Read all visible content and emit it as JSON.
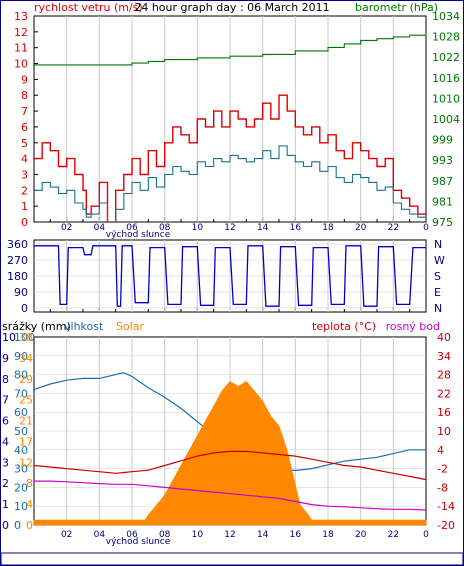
{
  "header": {
    "title": "24 hour graph day : 06 March 2011",
    "wind_label": "rychlost vetru (m/s)",
    "baro_label": "barometr (hPa)"
  },
  "legend_bottom": {
    "rain": "srážky (mm)",
    "humidity": "vlhkost",
    "solar": "Solar",
    "temp": "teplota (°C)",
    "dew": "rosný bod"
  },
  "sunrise_label": "východ slunce",
  "time_ticks": [
    "02",
    "04",
    "06",
    "08",
    "10",
    "12",
    "14",
    "16",
    "18",
    "20",
    "22"
  ],
  "colors": {
    "frame": "#000080",
    "wind_max": "#dd0000",
    "wind_avg": "#1a7090",
    "baro": "#007700",
    "direction": "#0000cc",
    "humidity": "#1a6eb0",
    "solar": "#ff8800",
    "temp": "#cc0000",
    "dew": "#cc00cc",
    "grid": "#cccccc"
  },
  "chart_data": [
    {
      "type": "line",
      "title": "24 hour graph day : 06 March 2011",
      "x_unit": "hour",
      "xlim": [
        0,
        24
      ],
      "left_axis": {
        "label": "rychlost vetru (m/s)",
        "ticks": [
          "0",
          "1",
          "2",
          "3",
          "4",
          "5",
          "6",
          "7",
          "8",
          "9",
          "10",
          "11",
          "12",
          "13"
        ],
        "ylim": [
          0,
          13
        ]
      },
      "right_axis": {
        "label": "barometr (hPa)",
        "ticks": [
          "975",
          "981",
          "987",
          "993",
          "999",
          "1004",
          "1010",
          "1016",
          "1022",
          "1028",
          "1034"
        ],
        "ylim": [
          975,
          1034
        ]
      },
      "series": [
        {
          "key": "wind_max",
          "axis": "left",
          "x": [
            0,
            0.5,
            1,
            1.5,
            2,
            2.5,
            3,
            3.2,
            3.5,
            4,
            4.5,
            5,
            5.5,
            6,
            6.5,
            7,
            7.5,
            8,
            8.5,
            9,
            9.5,
            10,
            10.5,
            11,
            11.5,
            12,
            12.5,
            13,
            13.5,
            14,
            14.5,
            15,
            15.5,
            16,
            16.5,
            17,
            17.5,
            18,
            18.5,
            19,
            19.5,
            20,
            20.5,
            21,
            21.5,
            22,
            22.5,
            23,
            23.5
          ],
          "y": [
            4,
            5,
            4.5,
            3.5,
            4,
            3,
            2,
            0.5,
            1,
            2.5,
            0,
            2,
            3,
            4,
            3,
            4.5,
            3.5,
            5,
            6,
            5.5,
            5,
            6.5,
            6,
            7,
            6,
            7,
            6.5,
            6,
            6.5,
            7.5,
            6.5,
            8,
            7,
            6,
            5.5,
            6,
            5,
            5.5,
            4.5,
            4,
            5,
            4.5,
            4,
            3.5,
            4,
            2,
            1.5,
            1,
            0.5
          ]
        },
        {
          "key": "wind_avg",
          "axis": "left",
          "x": [
            0,
            0.5,
            1,
            1.5,
            2,
            2.5,
            3,
            3.2,
            3.5,
            4,
            4.5,
            5,
            5.5,
            6,
            6.5,
            7,
            7.5,
            8,
            8.5,
            9,
            9.5,
            10,
            10.5,
            11,
            11.5,
            12,
            12.5,
            13,
            13.5,
            14,
            14.5,
            15,
            15.5,
            16,
            16.5,
            17,
            17.5,
            18,
            18.5,
            19,
            19.5,
            20,
            20.5,
            21,
            21.5,
            22,
            22.5,
            23,
            23.5
          ],
          "y": [
            2,
            2.5,
            2.2,
            1.8,
            2,
            1.2,
            0.8,
            0.3,
            0.5,
            1.2,
            0,
            0.8,
            1.8,
            2.5,
            2,
            2.8,
            2.2,
            3,
            3.5,
            3.2,
            3,
            3.8,
            3.5,
            4,
            3.8,
            4.2,
            4,
            3.8,
            4,
            4.5,
            4,
            4.8,
            4.2,
            3.8,
            3.5,
            3.8,
            3.2,
            3.5,
            2.8,
            2.5,
            3,
            2.8,
            2.5,
            2,
            2.2,
            1.2,
            0.8,
            0.5,
            0.3
          ]
        },
        {
          "key": "baro",
          "axis": "right",
          "x": [
            0,
            2,
            4,
            6,
            7,
            8,
            10,
            12,
            14,
            16,
            18,
            19,
            20,
            21,
            22,
            23,
            24
          ],
          "y": [
            1020,
            1020,
            1020,
            1020.5,
            1021,
            1021.5,
            1022,
            1022.5,
            1023,
            1024,
            1025,
            1026,
            1027,
            1027.5,
            1028,
            1028.5,
            1029
          ]
        }
      ]
    },
    {
      "type": "line",
      "title": "",
      "x_unit": "hour",
      "xlim": [
        0,
        24
      ],
      "left_axis": {
        "label": "",
        "ticks": [
          "0",
          "90",
          "180",
          "270",
          "360"
        ],
        "ylim": [
          0,
          360
        ]
      },
      "right_axis": {
        "label": "",
        "ticks": [
          "N",
          "E",
          "S",
          "W",
          "N"
        ],
        "ylim": [
          0,
          360
        ]
      },
      "series": [
        {
          "key": "direction",
          "axis": "left",
          "x": [
            0,
            1.5,
            1.6,
            2,
            2.1,
            3,
            3.1,
            3.5,
            3.6,
            5,
            5.1,
            5.3,
            5.4,
            6,
            6.2,
            7,
            7.1,
            8,
            8.2,
            9,
            9.1,
            10,
            10.2,
            11,
            11.1,
            12,
            12.2,
            13,
            13.1,
            14,
            14.2,
            15,
            15.1,
            16,
            16.2,
            17,
            17.1,
            18,
            18.2,
            19,
            19.1,
            20,
            20.2,
            21,
            21.1,
            22,
            22.2,
            23,
            23.2,
            24
          ],
          "y": [
            350,
            350,
            20,
            20,
            340,
            340,
            300,
            300,
            350,
            350,
            10,
            10,
            350,
            350,
            30,
            30,
            340,
            340,
            20,
            20,
            345,
            345,
            15,
            15,
            340,
            340,
            20,
            20,
            350,
            350,
            10,
            10,
            345,
            345,
            15,
            15,
            340,
            340,
            20,
            20,
            350,
            350,
            10,
            10,
            345,
            345,
            20,
            20,
            340,
            340
          ]
        }
      ]
    },
    {
      "type": "line",
      "title": "",
      "x_unit": "hour",
      "xlim": [
        0,
        24
      ],
      "left_axis_rain": {
        "label": "srážky (mm)",
        "ticks": [
          "0",
          "1",
          "2",
          "3",
          "4",
          "6",
          "7",
          "8",
          "9",
          "10"
        ],
        "ylim": [
          0,
          10
        ]
      },
      "left_axis_humidity": {
        "label": "vlhkost",
        "ticks": [
          "0",
          "10",
          "20",
          "30",
          "40",
          "50",
          "60",
          "70",
          "80",
          "90",
          "100"
        ],
        "ylim": [
          0,
          100
        ]
      },
      "left_axis_solar": {
        "label": "Solar",
        "ticks": [
          "0",
          "4",
          "8",
          "12",
          "17",
          "21",
          "25",
          "29",
          "34",
          "38"
        ],
        "ylim": [
          0,
          38
        ]
      },
      "right_axis": {
        "label": "teplota (°C)",
        "ticks": [
          "-20",
          "-14",
          "-8",
          "-2",
          "4",
          "10",
          "16",
          "22",
          "28",
          "34",
          "40"
        ],
        "ylim": [
          -20,
          40
        ]
      },
      "series": [
        {
          "key": "humidity",
          "axis": "humidity",
          "x": [
            0,
            1,
            2,
            3,
            4,
            5,
            5.5,
            6,
            7,
            8,
            9,
            10,
            11,
            12,
            13,
            14,
            15,
            16,
            17,
            18,
            19,
            20,
            21,
            22,
            23,
            24
          ],
          "y": [
            72,
            75,
            77,
            78,
            78,
            80,
            81,
            79,
            73,
            68,
            62,
            55,
            48,
            41,
            35,
            32,
            30,
            29,
            30,
            32,
            34,
            35,
            36,
            38,
            40,
            40
          ]
        },
        {
          "key": "solar",
          "axis": "solar",
          "x": [
            0,
            6,
            6.8,
            7,
            8,
            9,
            10,
            11,
            11.5,
            12,
            12.5,
            13,
            13.5,
            14,
            14.5,
            15,
            15.5,
            16,
            16.3,
            16.8,
            17,
            24
          ],
          "y": [
            1,
            1,
            1,
            2,
            6,
            12,
            18,
            24,
            27,
            29,
            28,
            29,
            27,
            25,
            22,
            20,
            15,
            8,
            4,
            2,
            1,
            1
          ]
        },
        {
          "key": "temp",
          "axis": "temp",
          "x": [
            0,
            1,
            2,
            3,
            4,
            5,
            6,
            7,
            8,
            9,
            10,
            11,
            12,
            13,
            14,
            15,
            16,
            17,
            18,
            19,
            20,
            21,
            22,
            23,
            24
          ],
          "y": [
            -1,
            -1.5,
            -2,
            -2.5,
            -3,
            -3.5,
            -3,
            -2.5,
            -1,
            0.5,
            2,
            3,
            3.5,
            3.5,
            3,
            2.5,
            2,
            1,
            0,
            -1,
            -1.5,
            -2.5,
            -3.5,
            -4.5,
            -5.5
          ]
        },
        {
          "key": "dew",
          "axis": "temp",
          "x": [
            0,
            1,
            2,
            3,
            4,
            5,
            6,
            7,
            8,
            9,
            10,
            11,
            12,
            13,
            14,
            15,
            16,
            17,
            18,
            19,
            20,
            21,
            22,
            23,
            24
          ],
          "y": [
            -6,
            -6,
            -6.2,
            -6.5,
            -6.8,
            -7,
            -7,
            -7.5,
            -8,
            -8.5,
            -9,
            -9.5,
            -10,
            -10.5,
            -11,
            -11.5,
            -12.5,
            -13.5,
            -14,
            -14.2,
            -14.5,
            -14.8,
            -15,
            -15,
            -15.2
          ]
        }
      ]
    }
  ]
}
